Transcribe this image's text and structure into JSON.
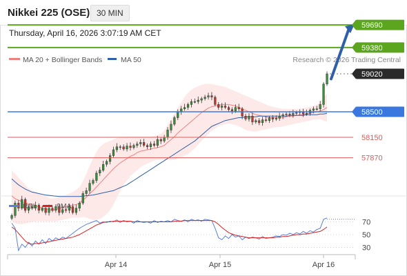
{
  "header": {
    "title": "Nikkei 225 (OSE)",
    "timeframe": "30 MIN"
  },
  "datetime": "Thursday, April 16, 2026 3:07:19 AM CET",
  "legend": {
    "items": [
      {
        "label": "MA 20 + Bollinger Bands",
        "color": "#f08080"
      },
      {
        "label": "MA 50",
        "color": "#2e5fa8"
      }
    ],
    "credit": "Research © 2026 Trading Central"
  },
  "colors": {
    "resistance": "#5ba61e",
    "support": "#e05a5a",
    "pivot": "#3a78e0",
    "current": "#2a2a2a",
    "arrow": "#2e5fa8",
    "rsi": "#5b7fd6",
    "rsi_ma": "#d82020",
    "band_fill": "#fde2e2"
  },
  "chart_data": [
    {
      "type": "candlestick",
      "title": "Nikkei 225 (OSE)",
      "x_ticks": [
        "Apr 14",
        "Apr 15",
        "Apr 16"
      ],
      "ylim": [
        57000,
        59900
      ],
      "levels": [
        {
          "label": "59690",
          "value": 59690,
          "kind": "resistance"
        },
        {
          "label": "59380",
          "value": 59380,
          "kind": "resistance"
        },
        {
          "label": "59020",
          "value": 59020,
          "kind": "current"
        },
        {
          "label": "58500",
          "value": 58500,
          "kind": "pivot"
        },
        {
          "label": "58150",
          "value": 58150,
          "kind": "support"
        },
        {
          "label": "57870",
          "value": 57870,
          "kind": "support"
        }
      ],
      "close_series": [
        57080,
        57250,
        57180,
        57300,
        57150,
        57200,
        57180,
        57220,
        57150,
        57180,
        57120,
        57180,
        57150,
        57200,
        57120,
        57160,
        57150,
        57200,
        57120,
        57180,
        57250,
        57380,
        57420,
        57520,
        57560,
        57660,
        57700,
        57780,
        57820,
        57900,
        57980,
        58020,
        58020,
        57990,
        58030,
        58010,
        58040,
        58060,
        58080,
        58040,
        58020,
        58060,
        58040,
        58120,
        58100,
        58150,
        58250,
        58330,
        58420,
        58500,
        58540,
        58560,
        58600,
        58640,
        58640,
        58660,
        58680,
        58700,
        58720,
        58700,
        58600,
        58560,
        58580,
        58560,
        58530,
        58510,
        58560,
        58540,
        58440,
        58400,
        58440,
        58360,
        58380,
        58350,
        58390,
        58380,
        58420,
        58400,
        58410,
        58440,
        58460,
        58470,
        58460,
        58480,
        58490,
        58500,
        58470,
        58480,
        58520,
        58540,
        58540,
        58600,
        58880,
        59020
      ],
      "ma20": [
        57350,
        57310,
        57290,
        57270,
        57250,
        57240,
        57220,
        57210,
        57200,
        57180,
        57170,
        57160,
        57150,
        57160,
        57170,
        57190,
        57200,
        57210,
        57220,
        57230,
        57250,
        57290,
        57330,
        57380,
        57420,
        57470,
        57520,
        57570,
        57620,
        57670,
        57720,
        57760,
        57800,
        57830,
        57860,
        57890,
        57910,
        57940,
        57960,
        57970,
        57980,
        57990,
        58000,
        58010,
        58020,
        58040,
        58080,
        58120,
        58160,
        58210,
        58250,
        58290,
        58330,
        58370,
        58410,
        58450,
        58490,
        58520,
        58550,
        58570,
        58580,
        58590,
        58600,
        58600,
        58600,
        58590,
        58580,
        58560,
        58540,
        58520,
        58500,
        58480,
        58460,
        58450,
        58440,
        58430,
        58420,
        58420,
        58420,
        58420,
        58420,
        58430,
        58440,
        58440,
        58450,
        58460,
        58460,
        58470,
        58480,
        58490,
        58500,
        58510,
        58530,
        58560
      ],
      "bb_upper": [
        57700,
        57650,
        57600,
        57550,
        57500,
        57450,
        57420,
        57400,
        57380,
        57360,
        57340,
        57320,
        57310,
        57320,
        57330,
        57350,
        57360,
        57380,
        57400,
        57430,
        57470,
        57550,
        57650,
        57760,
        57860,
        57950,
        58020,
        58060,
        58080,
        58100,
        58120,
        58140,
        58150,
        58160,
        58160,
        58160,
        58160,
        58160,
        58160,
        58160,
        58160,
        58160,
        58170,
        58180,
        58200,
        58240,
        58320,
        58400,
        58480,
        58560,
        58630,
        58700,
        58760,
        58800,
        58830,
        58850,
        58870,
        58880,
        58880,
        58880,
        58870,
        58860,
        58850,
        58840,
        58820,
        58800,
        58780,
        58760,
        58740,
        58720,
        58700,
        58680,
        58660,
        58640,
        58620,
        58600,
        58580,
        58570,
        58560,
        58550,
        58540,
        58540,
        58540,
        58540,
        58540,
        58540,
        58550,
        58560,
        58570,
        58580,
        58600,
        58630,
        58700,
        58750
      ],
      "bb_lower": [
        57000,
        56970,
        56960,
        56960,
        56970,
        56980,
        56990,
        57000,
        57000,
        57000,
        57000,
        57000,
        57000,
        57000,
        57010,
        57020,
        57030,
        57040,
        57050,
        57050,
        57050,
        57060,
        57050,
        57030,
        57020,
        57020,
        57030,
        57060,
        57100,
        57150,
        57230,
        57320,
        57410,
        57500,
        57560,
        57620,
        57660,
        57700,
        57740,
        57770,
        57790,
        57810,
        57830,
        57840,
        57840,
        57840,
        57840,
        57840,
        57840,
        57860,
        57880,
        57900,
        57920,
        57960,
        58000,
        58050,
        58100,
        58150,
        58200,
        58240,
        58270,
        58300,
        58320,
        58330,
        58340,
        58330,
        58320,
        58300,
        58280,
        58250,
        58240,
        58230,
        58230,
        58240,
        58250,
        58260,
        58270,
        58280,
        58290,
        58290,
        58300,
        58310,
        58320,
        58330,
        58340,
        58350,
        58360,
        58370,
        58380,
        58390,
        58400,
        58400,
        58380,
        58360
      ],
      "ma50": [
        57580,
        57540,
        57500,
        57470,
        57440,
        57420,
        57400,
        57390,
        57380,
        57370,
        57360,
        57355,
        57350,
        57345,
        57340,
        57340,
        57340,
        57340,
        57340,
        57340,
        57340,
        57345,
        57350,
        57355,
        57360,
        57370,
        57380,
        57390,
        57400,
        57410,
        57420,
        57440,
        57460,
        57480,
        57500,
        57530,
        57560,
        57590,
        57620,
        57650,
        57680,
        57710,
        57740,
        57770,
        57800,
        57830,
        57860,
        57890,
        57920,
        57950,
        57980,
        58010,
        58040,
        58070,
        58100,
        58140,
        58180,
        58220,
        58260,
        58300,
        58320,
        58340,
        58360,
        58380,
        58390,
        58400,
        58410,
        58420,
        58420,
        58430,
        58430,
        58430,
        58430,
        58440,
        58440,
        58440,
        58440,
        58440,
        58440,
        58440,
        58440,
        58440,
        58450,
        58450,
        58450,
        58450,
        58450,
        58460,
        58460,
        58460,
        58460,
        58470,
        58470,
        58480
      ],
      "forecast": {
        "from": 58950,
        "to": 59690
      }
    },
    {
      "type": "line",
      "legend": [
        {
          "label": "RSI"
        },
        {
          "label": "9MA"
        }
      ],
      "y_ticks": [
        70,
        50,
        30
      ],
      "ylim": [
        20,
        80
      ],
      "rsi": [
        68,
        60,
        25,
        35,
        30,
        38,
        32,
        40,
        35,
        42,
        36,
        44,
        40,
        45,
        42,
        46,
        44,
        48,
        52,
        56,
        60,
        63,
        66,
        68,
        70,
        72,
        68,
        70,
        69,
        71,
        70,
        73,
        69,
        72,
        70,
        71,
        68,
        72,
        70,
        69,
        70,
        68,
        72,
        69,
        71,
        70,
        72,
        70,
        74,
        72,
        71,
        73,
        70,
        74,
        72,
        73,
        71,
        74,
        73,
        72,
        60,
        45,
        42,
        48,
        44,
        50,
        46,
        48,
        42,
        46,
        44,
        46,
        45,
        43,
        47,
        44,
        45,
        46,
        48,
        47,
        50,
        49,
        52,
        50,
        53,
        51,
        55,
        52,
        56,
        54,
        58,
        60,
        74,
        76
      ],
      "rsi_ma": [
        62,
        58,
        52,
        46,
        40,
        36,
        35,
        36,
        36,
        37,
        38,
        39,
        40,
        41,
        42,
        43,
        44,
        45,
        46,
        48,
        50,
        53,
        56,
        59,
        62,
        65,
        67,
        69,
        70,
        70,
        71,
        71,
        71,
        71,
        71,
        71,
        70,
        70,
        70,
        70,
        70,
        70,
        70,
        70,
        70,
        70,
        70,
        70,
        71,
        71,
        71,
        72,
        72,
        72,
        72,
        72,
        72,
        72,
        72,
        72,
        70,
        66,
        61,
        57,
        53,
        51,
        49,
        48,
        47,
        46,
        45,
        45,
        45,
        45,
        45,
        45,
        45,
        45,
        46,
        46,
        47,
        47,
        48,
        49,
        50,
        50,
        51,
        51,
        52,
        53,
        54,
        55,
        58,
        62
      ],
      "forecast_level": 74
    }
  ]
}
